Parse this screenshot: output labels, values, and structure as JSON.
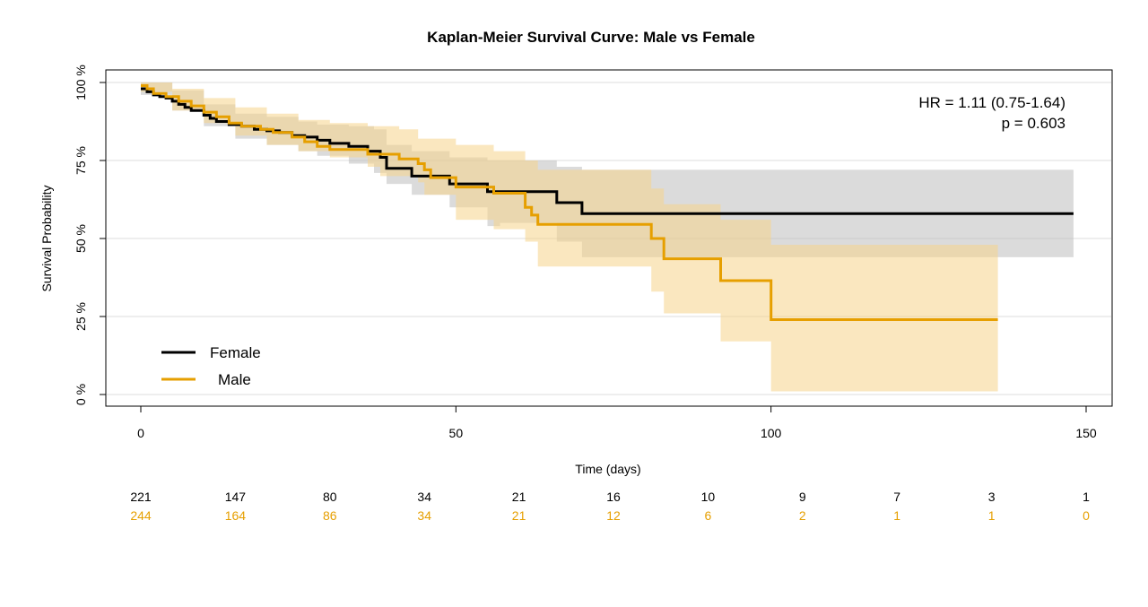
{
  "chart_data": {
    "type": "line",
    "title": "Kaplan-Meier Survival Curve: Male vs Female",
    "xlabel": "Time (days)",
    "ylabel": "Survival Probability",
    "xlim": [
      0,
      150
    ],
    "ylim": [
      0,
      1
    ],
    "x_ticks": [
      0,
      50,
      100,
      150
    ],
    "x_tick_labels": [
      "0",
      "50",
      "100",
      "150"
    ],
    "y_ticks": [
      0,
      0.25,
      0.5,
      0.75,
      1.0
    ],
    "y_tick_labels": [
      "0 %",
      "25 %",
      "50 %",
      "75 %",
      "100 %"
    ],
    "grid": "horizontal",
    "legend_position": "bottom-left",
    "annotations": [
      "HR = 1.11 (0.75-1.64)",
      "p = 0.603"
    ],
    "series": [
      {
        "name": "Female",
        "color": "#000000",
        "band_color": "#bdbdbd",
        "steps": [
          [
            0,
            0.98
          ],
          [
            1,
            0.97
          ],
          [
            2,
            0.96
          ],
          [
            3,
            0.955
          ],
          [
            4,
            0.95
          ],
          [
            5,
            0.94
          ],
          [
            6,
            0.93
          ],
          [
            7,
            0.92
          ],
          [
            8,
            0.91
          ],
          [
            10,
            0.895
          ],
          [
            11,
            0.885
          ],
          [
            12,
            0.875
          ],
          [
            14,
            0.865
          ],
          [
            16,
            0.86
          ],
          [
            18,
            0.85
          ],
          [
            20,
            0.845
          ],
          [
            22,
            0.84
          ],
          [
            24,
            0.83
          ],
          [
            26,
            0.825
          ],
          [
            28,
            0.815
          ],
          [
            30,
            0.805
          ],
          [
            33,
            0.795
          ],
          [
            36,
            0.78
          ],
          [
            38,
            0.76
          ],
          [
            39,
            0.725
          ],
          [
            43,
            0.7
          ],
          [
            49,
            0.675
          ],
          [
            55,
            0.65
          ],
          [
            66,
            0.615
          ],
          [
            70,
            0.58
          ],
          [
            148,
            0.58
          ]
        ],
        "ci": [
          [
            0,
            0.96,
            1.0
          ],
          [
            5,
            0.91,
            0.975
          ],
          [
            10,
            0.86,
            0.93
          ],
          [
            15,
            0.82,
            0.9
          ],
          [
            20,
            0.8,
            0.89
          ],
          [
            25,
            0.78,
            0.875
          ],
          [
            28,
            0.765,
            0.865
          ],
          [
            33,
            0.74,
            0.86
          ],
          [
            37,
            0.71,
            0.85
          ],
          [
            39,
            0.675,
            0.8
          ],
          [
            43,
            0.64,
            0.78
          ],
          [
            49,
            0.6,
            0.76
          ],
          [
            55,
            0.54,
            0.75
          ],
          [
            57,
            0.55,
            0.75
          ],
          [
            63,
            0.55,
            0.75
          ],
          [
            66,
            0.49,
            0.73
          ],
          [
            70,
            0.44,
            0.72
          ],
          [
            148,
            0.44,
            0.72
          ]
        ]
      },
      {
        "name": "Male",
        "color": "#e69f00",
        "band_color": "#f5d48a",
        "steps": [
          [
            0,
            0.99
          ],
          [
            1,
            0.98
          ],
          [
            2,
            0.965
          ],
          [
            4,
            0.955
          ],
          [
            6,
            0.94
          ],
          [
            8,
            0.925
          ],
          [
            10,
            0.905
          ],
          [
            12,
            0.89
          ],
          [
            14,
            0.87
          ],
          [
            16,
            0.86
          ],
          [
            19,
            0.85
          ],
          [
            21,
            0.84
          ],
          [
            24,
            0.825
          ],
          [
            26,
            0.81
          ],
          [
            28,
            0.795
          ],
          [
            30,
            0.785
          ],
          [
            36,
            0.77
          ],
          [
            41,
            0.755
          ],
          [
            44,
            0.74
          ],
          [
            45,
            0.72
          ],
          [
            46,
            0.695
          ],
          [
            50,
            0.665
          ],
          [
            56,
            0.645
          ],
          [
            61,
            0.6
          ],
          [
            62,
            0.575
          ],
          [
            63,
            0.545
          ],
          [
            81,
            0.5
          ],
          [
            83,
            0.435
          ],
          [
            92,
            0.365
          ],
          [
            100,
            0.24
          ],
          [
            136,
            0.24
          ]
        ],
        "ci": [
          [
            0,
            0.97,
            1.0
          ],
          [
            5,
            0.91,
            0.98
          ],
          [
            10,
            0.87,
            0.95
          ],
          [
            15,
            0.83,
            0.92
          ],
          [
            20,
            0.8,
            0.9
          ],
          [
            25,
            0.78,
            0.88
          ],
          [
            30,
            0.76,
            0.87
          ],
          [
            36,
            0.73,
            0.86
          ],
          [
            38,
            0.7,
            0.86
          ],
          [
            41,
            0.7,
            0.85
          ],
          [
            44,
            0.68,
            0.82
          ],
          [
            45,
            0.64,
            0.82
          ],
          [
            50,
            0.56,
            0.8
          ],
          [
            56,
            0.53,
            0.78
          ],
          [
            61,
            0.49,
            0.75
          ],
          [
            63,
            0.41,
            0.72
          ],
          [
            81,
            0.33,
            0.66
          ],
          [
            83,
            0.26,
            0.61
          ],
          [
            92,
            0.17,
            0.56
          ],
          [
            100,
            0.01,
            0.48
          ],
          [
            136,
            0.01,
            0.48
          ]
        ]
      }
    ],
    "risk_table": {
      "times": [
        0,
        15,
        30,
        45,
        60,
        75,
        90,
        105,
        120,
        135,
        150
      ],
      "rows": [
        {
          "name": "Female",
          "color": "#000000",
          "values": [
            "221",
            "147",
            "80",
            "34",
            "21",
            "16",
            "10",
            "9",
            "7",
            "3",
            "1"
          ]
        },
        {
          "name": "Male",
          "color": "#e69f00",
          "values": [
            "244",
            "164",
            "86",
            "34",
            "21",
            "12",
            "6",
            "2",
            "1",
            "1",
            "0"
          ]
        }
      ]
    }
  }
}
